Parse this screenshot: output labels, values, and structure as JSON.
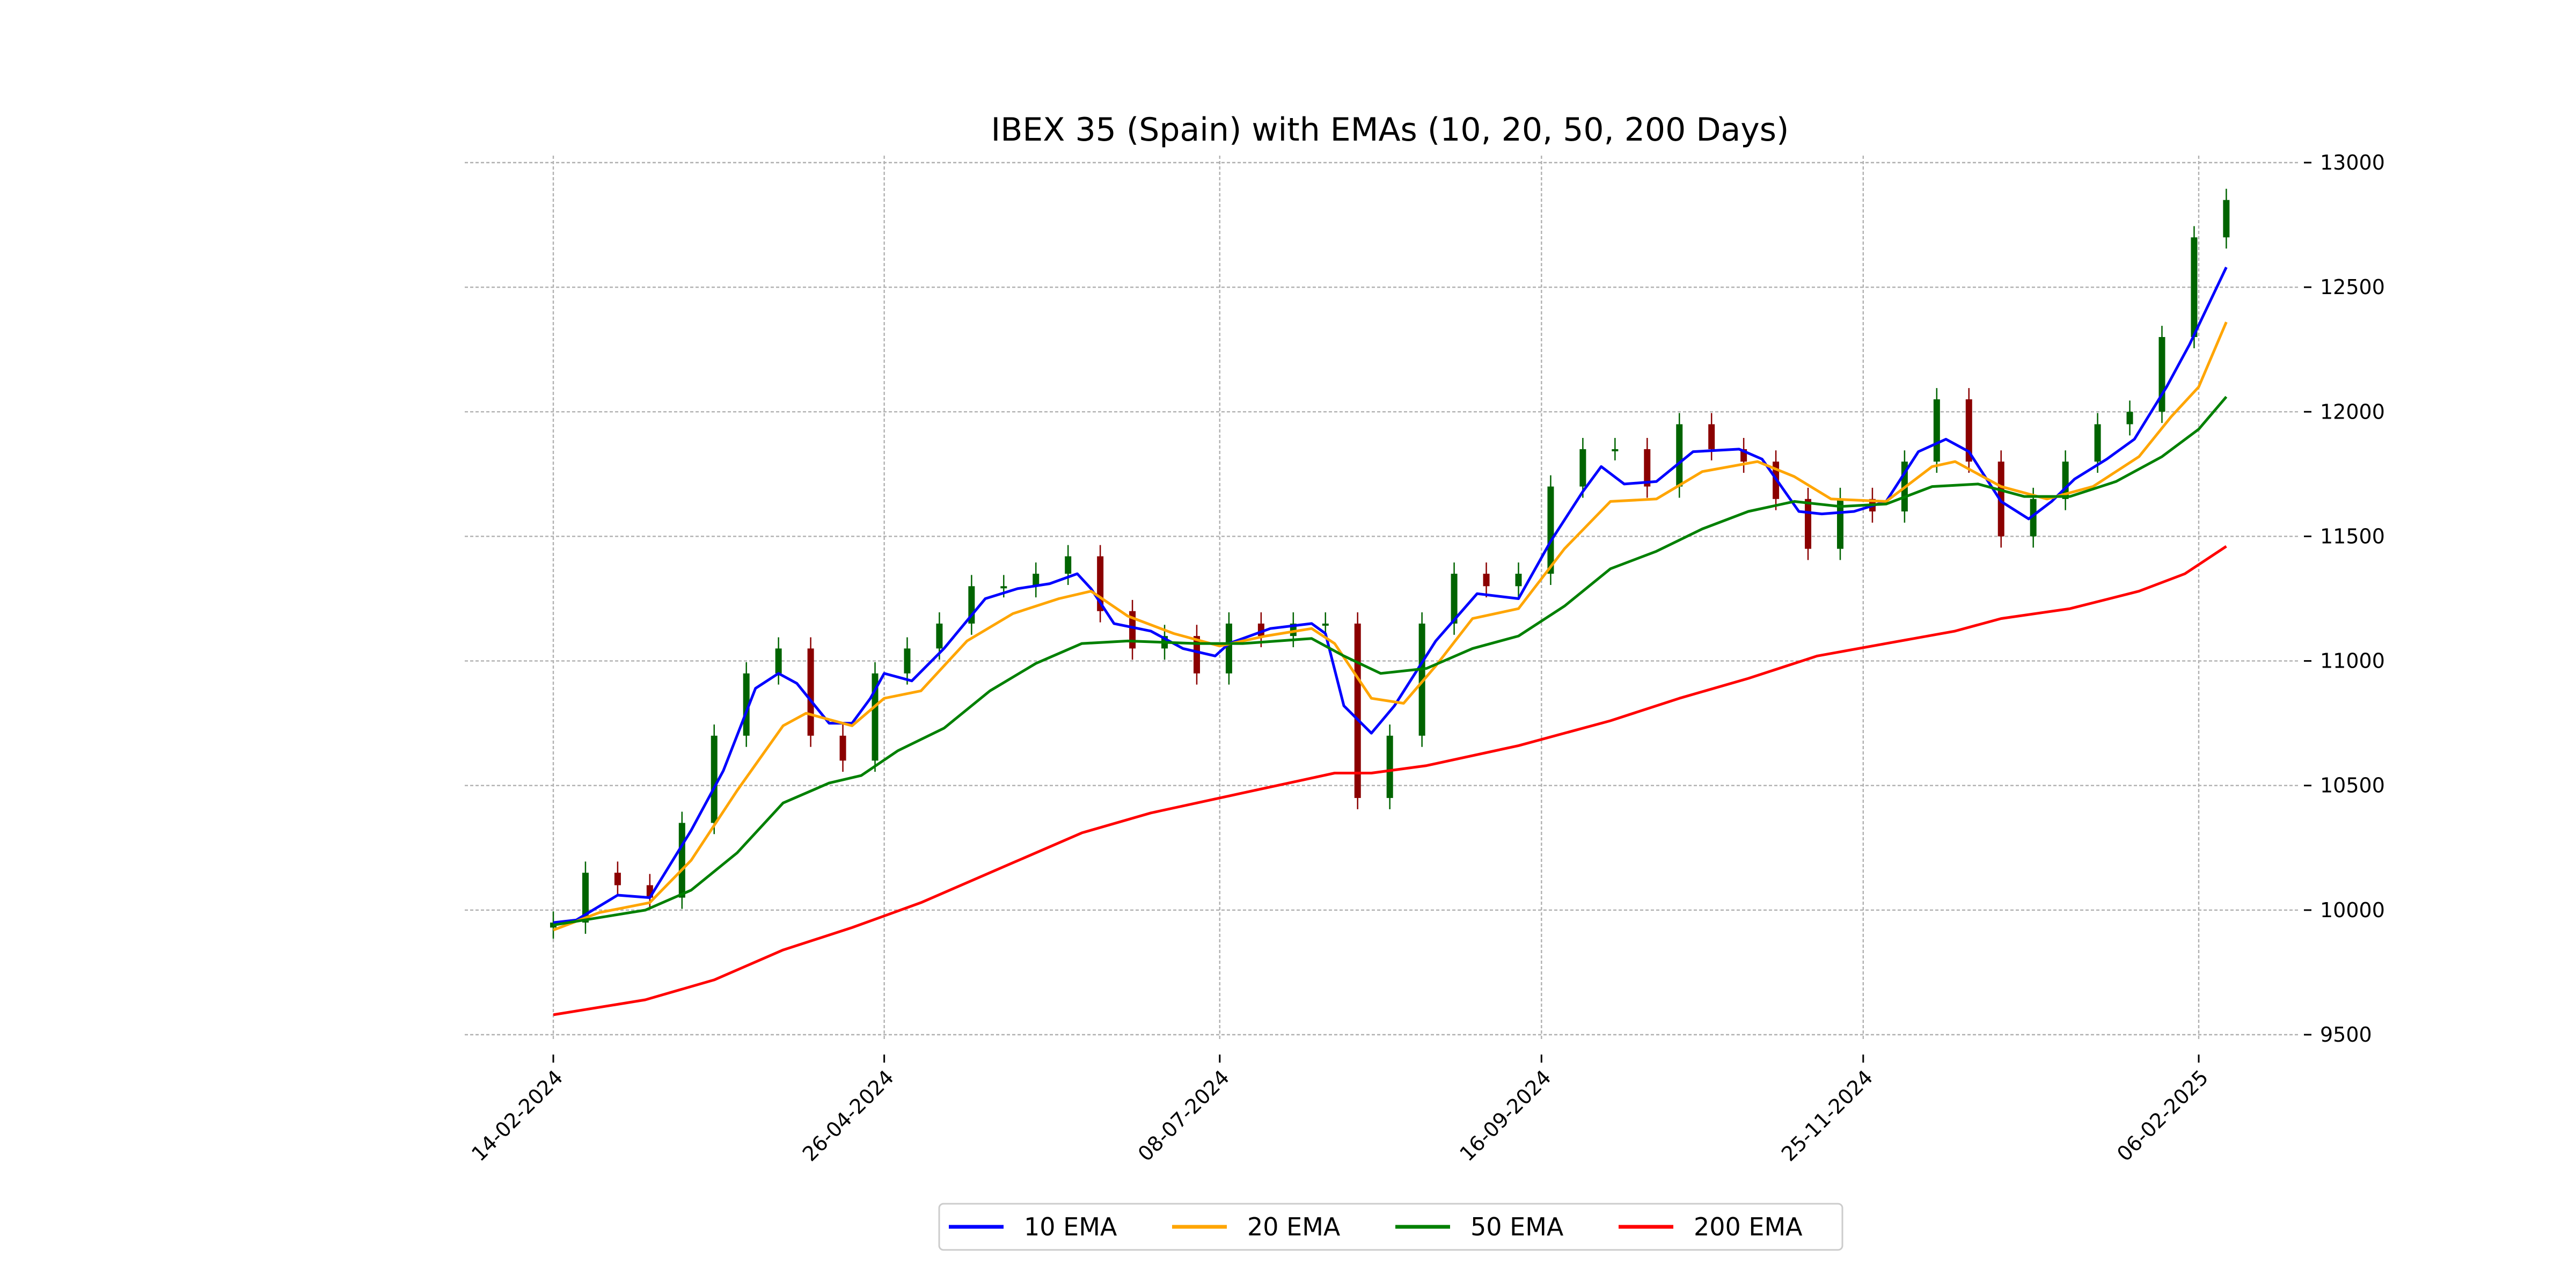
{
  "chart_data": {
    "type": "line",
    "title": "IBEX 35 (Spain) with EMAs (10, 20, 50, 200 Days)",
    "xlabel": "",
    "ylabel": "",
    "x_unit": "days since 14-02-2024",
    "xlim": [
      -17,
      380
    ],
    "ylim": [
      9430,
      13020
    ],
    "grid": true,
    "legend_position": "bottom-center",
    "y_ticks": [
      9500,
      10000,
      10500,
      11000,
      11500,
      12000,
      12500,
      13000
    ],
    "x_ticks": [
      {
        "day": 0,
        "label": "14-02-2024"
      },
      {
        "day": 72,
        "label": "26-04-2024"
      },
      {
        "day": 145,
        "label": "08-07-2024"
      },
      {
        "day": 215,
        "label": "16-09-2024"
      },
      {
        "day": 285,
        "label": "25-11-2024"
      },
      {
        "day": 358,
        "label": "06-02-2025"
      }
    ],
    "candles": {
      "step_days": 7,
      "up_color": "#006400",
      "down_color": "#8b0000",
      "closes": [
        9950,
        10150,
        10100,
        10050,
        10350,
        10700,
        10950,
        11050,
        10700,
        10600,
        10950,
        11050,
        11150,
        11300,
        11300,
        11350,
        11420,
        11200,
        11050,
        11100,
        10950,
        11150,
        11100,
        11150,
        11150,
        10450,
        10700,
        11150,
        11350,
        11300,
        11350,
        11700,
        11850,
        11850,
        11700,
        11950,
        11850,
        11800,
        11650,
        11450,
        11650,
        11600,
        11800,
        12050,
        11800,
        11500,
        11650,
        11800,
        11950,
        12000,
        12300,
        12700,
        12850
      ]
    },
    "series": [
      {
        "name": "10 EMA",
        "color": "#0000ff",
        "points": [
          [
            0,
            9950
          ],
          [
            5,
            9960
          ],
          [
            14,
            10060
          ],
          [
            21,
            10050
          ],
          [
            30,
            10320
          ],
          [
            37,
            10560
          ],
          [
            44,
            10890
          ],
          [
            49,
            10950
          ],
          [
            53,
            10910
          ],
          [
            60,
            10750
          ],
          [
            65,
            10750
          ],
          [
            69,
            10850
          ],
          [
            72,
            10950
          ],
          [
            78,
            10920
          ],
          [
            85,
            11050
          ],
          [
            94,
            11250
          ],
          [
            101,
            11290
          ],
          [
            108,
            11310
          ],
          [
            114,
            11350
          ],
          [
            117,
            11290
          ],
          [
            122,
            11150
          ],
          [
            130,
            11120
          ],
          [
            137,
            11050
          ],
          [
            144,
            11020
          ],
          [
            147,
            11070
          ],
          [
            156,
            11130
          ],
          [
            165,
            11150
          ],
          [
            168,
            11110
          ],
          [
            172,
            10820
          ],
          [
            178,
            10710
          ],
          [
            183,
            10820
          ],
          [
            192,
            11080
          ],
          [
            201,
            11270
          ],
          [
            210,
            11250
          ],
          [
            217,
            11480
          ],
          [
            224,
            11680
          ],
          [
            228,
            11780
          ],
          [
            233,
            11710
          ],
          [
            240,
            11720
          ],
          [
            248,
            11840
          ],
          [
            258,
            11850
          ],
          [
            263,
            11810
          ],
          [
            271,
            11600
          ],
          [
            276,
            11590
          ],
          [
            283,
            11600
          ],
          [
            290,
            11640
          ],
          [
            297,
            11840
          ],
          [
            303,
            11890
          ],
          [
            308,
            11840
          ],
          [
            315,
            11640
          ],
          [
            321,
            11570
          ],
          [
            326,
            11640
          ],
          [
            331,
            11730
          ],
          [
            338,
            11810
          ],
          [
            344,
            11890
          ],
          [
            351,
            12100
          ],
          [
            356,
            12270
          ],
          [
            364,
            12580
          ]
        ]
      },
      {
        "name": "20 EMA",
        "color": "#ffa500",
        "points": [
          [
            0,
            9920
          ],
          [
            10,
            9990
          ],
          [
            21,
            10030
          ],
          [
            30,
            10200
          ],
          [
            40,
            10480
          ],
          [
            50,
            10740
          ],
          [
            55,
            10790
          ],
          [
            65,
            10740
          ],
          [
            72,
            10850
          ],
          [
            80,
            10880
          ],
          [
            90,
            11080
          ],
          [
            100,
            11190
          ],
          [
            110,
            11250
          ],
          [
            117,
            11280
          ],
          [
            125,
            11180
          ],
          [
            135,
            11110
          ],
          [
            145,
            11060
          ],
          [
            155,
            11100
          ],
          [
            165,
            11130
          ],
          [
            170,
            11070
          ],
          [
            178,
            10850
          ],
          [
            185,
            10830
          ],
          [
            192,
            10980
          ],
          [
            200,
            11170
          ],
          [
            210,
            11210
          ],
          [
            220,
            11450
          ],
          [
            230,
            11640
          ],
          [
            240,
            11650
          ],
          [
            250,
            11760
          ],
          [
            262,
            11800
          ],
          [
            270,
            11740
          ],
          [
            278,
            11650
          ],
          [
            290,
            11640
          ],
          [
            300,
            11780
          ],
          [
            305,
            11800
          ],
          [
            315,
            11700
          ],
          [
            325,
            11650
          ],
          [
            335,
            11700
          ],
          [
            345,
            11820
          ],
          [
            352,
            11980
          ],
          [
            358,
            12100
          ],
          [
            364,
            12360
          ]
        ]
      },
      {
        "name": "50 EMA",
        "color": "#008000",
        "points": [
          [
            0,
            9940
          ],
          [
            10,
            9970
          ],
          [
            20,
            10000
          ],
          [
            30,
            10080
          ],
          [
            40,
            10230
          ],
          [
            50,
            10430
          ],
          [
            60,
            10510
          ],
          [
            67,
            10540
          ],
          [
            75,
            10640
          ],
          [
            85,
            10730
          ],
          [
            95,
            10880
          ],
          [
            105,
            10990
          ],
          [
            115,
            11070
          ],
          [
            125,
            11080
          ],
          [
            140,
            11070
          ],
          [
            150,
            11070
          ],
          [
            165,
            11090
          ],
          [
            172,
            11020
          ],
          [
            180,
            10950
          ],
          [
            190,
            10970
          ],
          [
            200,
            11050
          ],
          [
            210,
            11100
          ],
          [
            220,
            11220
          ],
          [
            230,
            11370
          ],
          [
            240,
            11440
          ],
          [
            250,
            11530
          ],
          [
            260,
            11600
          ],
          [
            270,
            11640
          ],
          [
            280,
            11620
          ],
          [
            290,
            11630
          ],
          [
            300,
            11700
          ],
          [
            310,
            11710
          ],
          [
            320,
            11660
          ],
          [
            330,
            11660
          ],
          [
            340,
            11720
          ],
          [
            350,
            11820
          ],
          [
            358,
            11930
          ],
          [
            364,
            12060
          ]
        ]
      },
      {
        "name": "200 EMA",
        "color": "#ff0000",
        "points": [
          [
            0,
            9580
          ],
          [
            20,
            9640
          ],
          [
            35,
            9720
          ],
          [
            50,
            9840
          ],
          [
            65,
            9930
          ],
          [
            80,
            10030
          ],
          [
            100,
            10190
          ],
          [
            115,
            10310
          ],
          [
            130,
            10390
          ],
          [
            150,
            10470
          ],
          [
            170,
            10550
          ],
          [
            178,
            10550
          ],
          [
            190,
            10580
          ],
          [
            210,
            10660
          ],
          [
            230,
            10760
          ],
          [
            245,
            10850
          ],
          [
            260,
            10930
          ],
          [
            275,
            11020
          ],
          [
            290,
            11070
          ],
          [
            305,
            11120
          ],
          [
            315,
            11170
          ],
          [
            330,
            11210
          ],
          [
            345,
            11280
          ],
          [
            355,
            11350
          ],
          [
            364,
            11460
          ]
        ]
      }
    ]
  }
}
